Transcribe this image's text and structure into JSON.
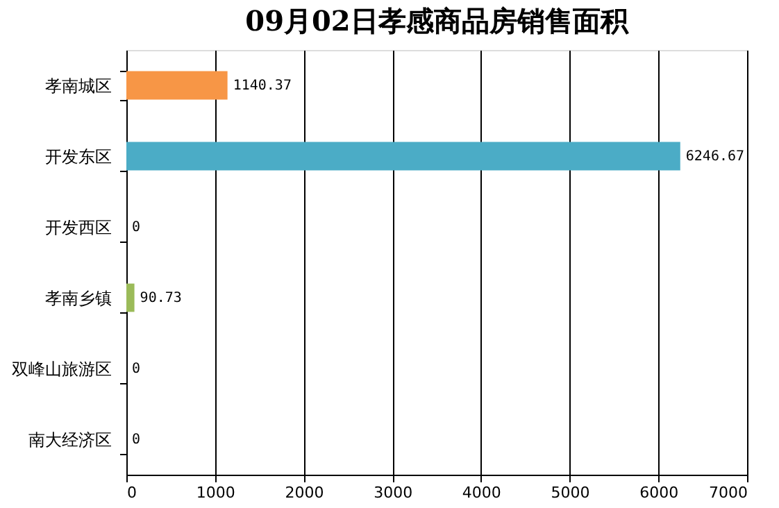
{
  "chart_data": {
    "type": "bar",
    "orientation": "horizontal",
    "title": "09月02日孝感商品房销售面积",
    "categories": [
      "孝南城区",
      "开发东区",
      "开发西区",
      "孝南乡镇",
      "双峰山旅游区",
      "南大经济区"
    ],
    "values": [
      1140.37,
      6246.67,
      0,
      90.73,
      0,
      0
    ],
    "colors": [
      "#f79646",
      "#4bacc6",
      "#4bacc6",
      "#9bbb59",
      "#9bbb59",
      "#9bbb59"
    ],
    "xlim": [
      0,
      7000
    ],
    "xticks": [
      0,
      1000,
      2000,
      3000,
      4000,
      5000,
      6000,
      7000
    ],
    "grid": "x",
    "data_labels": true
  }
}
